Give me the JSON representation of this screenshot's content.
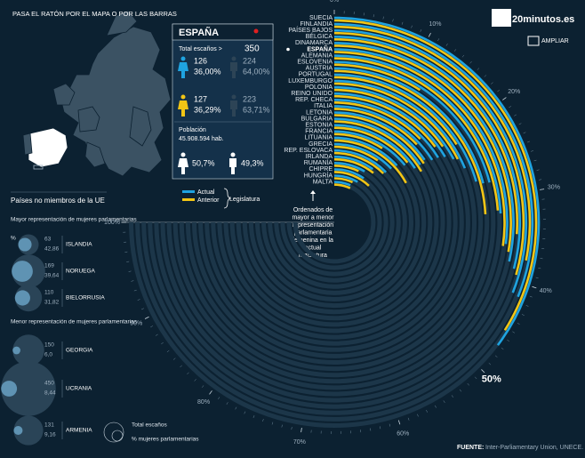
{
  "header": {
    "instruction": "PASA EL RATÓN POR EL MAPA O POR LAS BARRAS",
    "logo": "20minutos.es",
    "zoom": "AMPLIAR"
  },
  "spain_panel": {
    "title": "ESPAÑA",
    "total_label": "Total escaños >",
    "total": "350",
    "current": {
      "women": "126",
      "women_pct": "36,00%",
      "men": "224",
      "men_pct": "64,00%"
    },
    "previous": {
      "women": "127",
      "women_pct": "36,29%",
      "men": "223",
      "men_pct": "63,71%"
    },
    "population_label": "Población",
    "population": "45.908.594 hab.",
    "women_pop": "50,7%",
    "men_pop": "49,3%"
  },
  "legend": {
    "title": "Legislatura"
  },
  "note": "Ordenados de mayor a menor representación parlamentaria femenina en la actual legislatura",
  "source_label": "FUENTE:",
  "source": "Inter-Parliamentary Union, UNECE.",
  "non_eu": {
    "title": "Países no miembros de la UE",
    "high_label": "Mayor representación de mujeres parlamentarias",
    "pct_symbol": "%",
    "low_label": "Menor representación de mujeres parlamentarias",
    "legend_seats": "Total escaños",
    "legend_pct": "% mujeres parlamentarias",
    "countries": [
      {
        "name": "ISLANDIA",
        "seats": 63,
        "pct": {
          "value": 42.86,
          "label": "42,86"
        }
      },
      {
        "name": "NORUEGA",
        "seats": 169,
        "pct": {
          "value": 39.64,
          "label": "39,64"
        }
      },
      {
        "name": "BIELORRUSIA",
        "seats": 110,
        "pct": {
          "value": 31.82,
          "label": "31,82"
        }
      },
      {
        "name": "GEORGIA",
        "seats": 150,
        "pct": {
          "value": 6.0,
          "label": "6,0"
        }
      },
      {
        "name": "UCRANIA",
        "seats": 450,
        "pct": {
          "value": 8.44,
          "label": "8,44"
        }
      },
      {
        "name": "ARMENIA",
        "seats": 131,
        "pct": {
          "value": 9.16,
          "label": "9,16"
        }
      }
    ]
  },
  "chart_data": {
    "type": "radial_bar",
    "categories": [
      "SUECIA",
      "FINLANDIA",
      "PAÍSES BAJOS",
      "BÉLGICA",
      "DINAMARCA",
      "ESPAÑA",
      "ALEMANIA",
      "ESLOVENIA",
      "AUSTRIA",
      "PORTUGAL",
      "LUXEMBURGO",
      "POLONIA",
      "REINO UNIDO",
      "REP. CHECA",
      "ITALIA",
      "LETONIA",
      "BULGARIA",
      "ESTONIA",
      "FRANCIA",
      "LITUANIA",
      "GRECIA",
      "REP. ESLOVACA",
      "IRLANDA",
      "RUMANÍA",
      "CHIPRE",
      "HUNGRÍA",
      "MALTA"
    ],
    "series": [
      {
        "name": "Actual",
        "color": "#1fa3e0",
        "values": [
          47,
          41.5,
          41.3,
          38.7,
          38,
          36,
          32.2,
          28,
          27.9,
          27.4,
          25,
          23,
          22,
          21.5,
          21.3,
          20.5,
          20.8,
          20.8,
          18.9,
          17.7,
          17.3,
          17,
          13.3,
          11.4,
          12.5,
          11.1,
          8.7
        ]
      },
      {
        "name": "Anterior",
        "color": "#f2c515",
        "values": [
          45.3,
          37.5,
          39.3,
          34.7,
          36.9,
          36.29,
          31.8,
          12.2,
          32.2,
          21.3,
          23.3,
          20.4,
          19.7,
          17,
          17.3,
          21,
          22.1,
          18.8,
          12.2,
          22.7,
          13,
          16.7,
          14.2,
          9.4,
          16.1,
          9.1,
          9.2
        ]
      }
    ],
    "ylim": [
      0,
      100
    ],
    "yticks": [
      {
        "value": 0,
        "label": "0%"
      },
      {
        "value": 10,
        "label": "10%"
      },
      {
        "value": 20,
        "label": "20%"
      },
      {
        "value": 30,
        "label": "30%"
      },
      {
        "value": 40,
        "label": "40%"
      },
      {
        "value": 50,
        "label": "50%"
      },
      {
        "value": 60,
        "label": "60%"
      },
      {
        "value": 70,
        "label": "70%"
      },
      {
        "value": 80,
        "label": "80%"
      },
      {
        "value": 90,
        "label": "90%"
      },
      {
        "value": 100,
        "label": "100%"
      }
    ]
  }
}
